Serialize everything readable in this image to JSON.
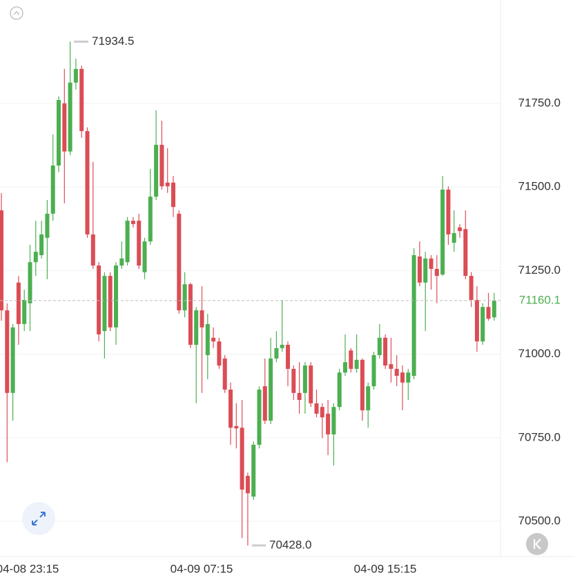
{
  "chart_data": {
    "type": "candlestick",
    "up_color": "#4caf50",
    "down_color": "#db4d55",
    "ylim": [
      70397,
      72059
    ],
    "yticks": [
      {
        "value": 70500,
        "label": "70500.0"
      },
      {
        "value": 70750,
        "label": "70750.0"
      },
      {
        "value": 71000,
        "label": "71000.0"
      },
      {
        "value": 71250,
        "label": "71250.0"
      },
      {
        "value": 71500,
        "label": "71500.0"
      },
      {
        "value": 71750,
        "label": "71750.0"
      }
    ],
    "grid": true,
    "x_labels": [
      "04-08 23:15",
      "04-09 07:15",
      "04-09 15:15"
    ],
    "last_price": 71160.1,
    "max_marker": {
      "value": 71934.5,
      "label": "71934.5"
    },
    "min_marker": {
      "value": 70428,
      "label": "70428.0"
    },
    "open": [
      71430,
      71131,
      70884,
      71214,
      71090,
      71152,
      71275,
      71296,
      71348,
      71420,
      71564,
      71750,
      71606,
      71812,
      71853,
      71667,
      71358,
      71265,
      71069,
      71234,
      71080,
      71265,
      71275,
      71399,
      71399,
      71245,
      71337,
      71471,
      71626,
      71513,
      71513,
      71420,
      71131,
      71209,
      71028,
      71131,
      70997,
      71049,
      71038,
      70987,
      70894,
      70785,
      70780,
      70636,
      70574,
      70729,
      70904,
      70801,
      70987,
      71018,
      71028,
      70956,
      70884,
      70884,
      70966,
      70853,
      70842,
      70822,
      70760,
      70842,
      70945,
      71011,
      70956,
      70983,
      70832,
      70904,
      70997,
      71049,
      70970,
      70956,
      70945,
      70915,
      70935,
      71292,
      71214,
      71286,
      71255,
      71238,
      71492,
      71333,
      71379,
      71374,
      71234,
      71162,
      71038,
      71141,
      71110
    ],
    "high": [
      71482,
      71152,
      71090,
      71234,
      71193,
      71327,
      71399,
      71399,
      71461,
      71657,
      71771,
      71853,
      71934.5,
      71884,
      71863,
      71678,
      71575,
      71275,
      71245,
      71245,
      71275,
      71337,
      71410,
      71410,
      71420,
      71348,
      71554,
      71729,
      71698,
      71616,
      71533,
      71430,
      71245,
      71214,
      71141,
      71203,
      71121,
      71080,
      71049,
      70997,
      70915,
      70853,
      70863,
      70646,
      70739,
      70904,
      70987,
      71049,
      71069,
      71162,
      71038,
      70966,
      70976,
      70976,
      70976,
      70894,
      70853,
      70863,
      70853,
      70956,
      71059,
      71018,
      71059,
      70987,
      70915,
      71007,
      71090,
      71059,
      71049,
      70997,
      70966,
      70956,
      71317,
      71337,
      71306,
      71296,
      71296,
      71533,
      71502,
      71430,
      71389,
      71430,
      71245,
      71203,
      71152,
      71183,
      71183
    ],
    "low": [
      71100,
      70677,
      70801,
      71028,
      71069,
      71069,
      71234,
      71286,
      71224,
      71399,
      71544,
      71451,
      71595,
      71791,
      71647,
      71348,
      71255,
      71038,
      70987,
      71069,
      71028,
      71255,
      71265,
      71379,
      71255,
      71224,
      71327,
      71461,
      71492,
      71482,
      71410,
      71121,
      71110,
      71018,
      70853,
      70884,
      70925,
      71018,
      70956,
      70884,
      70729,
      70718,
      70450,
      70428,
      70564,
      70718,
      70791,
      70791,
      70976,
      71007,
      70904,
      70863,
      70822,
      70822,
      70842,
      70811,
      70749,
      70698,
      70667,
      70832,
      70935,
      70945,
      70945,
      70801,
      70780,
      70894,
      70987,
      70956,
      70915,
      70904,
      70832,
      70863,
      70925,
      71203,
      71069,
      71193,
      71152,
      71234,
      71327,
      71306,
      71348,
      71224,
      71141,
      71007,
      71028,
      71100,
      71100
    ],
    "close": [
      71131,
      70884,
      71080,
      71090,
      71162,
      71275,
      71306,
      71358,
      71420,
      71564,
      71760,
      71606,
      71812,
      71853,
      71667,
      71358,
      71265,
      71059,
      71234,
      71080,
      71265,
      71286,
      71399,
      71389,
      71265,
      71337,
      71471,
      71626,
      71502,
      71502,
      71440,
      71131,
      71209,
      71028,
      71131,
      71080,
      71090,
      71038,
      70966,
      70894,
      70780,
      70778,
      70595,
      70584,
      70729,
      70894,
      70801,
      70987,
      71018,
      71028,
      70956,
      70884,
      70863,
      70966,
      70853,
      70822,
      70811,
      70760,
      70842,
      70945,
      70976,
      70956,
      70983,
      70832,
      70904,
      70997,
      71049,
      70966,
      70956,
      70935,
      70915,
      70945,
      71296,
      71214,
      71286,
      71255,
      71234,
      71492,
      71358,
      71362,
      71368,
      71234,
      71162,
      71038,
      71141,
      71106,
      71160.1
    ]
  }
}
